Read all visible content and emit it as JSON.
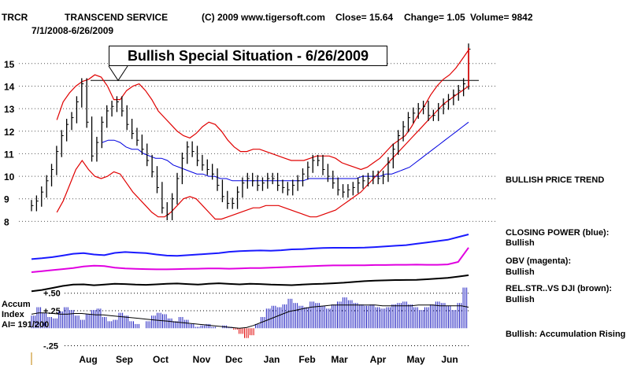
{
  "header": {
    "ticker": "TRCR",
    "company": "TRANSCEND SERVICE",
    "copyright": "(C) 2009 www.tigersoft.com",
    "close": "Close=  15.64",
    "change": "Change= 1.05",
    "volume": "Volume=  9842",
    "date_range": "7/1/2008-6/26/2009"
  },
  "callout": "Bullish Special Situation - 6/26/2009",
  "side_labels": {
    "price_trend": "BULLISH PRICE TREND",
    "closing_power_title": "CLOSING POWER (blue):",
    "closing_power_value": "Bullish",
    "obv_title": "OBV (magenta):",
    "obv_value": "Bullish",
    "relstr_title": "REL.STR..VS DJI (brown):",
    "relstr_value": "Bullish",
    "accum_status": "Bullish: Accumulation Rising"
  },
  "accum_labels": {
    "title": "Accum",
    "subtitle": "Index",
    "ai": "AI= 191/200"
  },
  "colors": {
    "price_bars": "#000000",
    "bollinger_bands": "#e00000",
    "moving_average": "#0000e0",
    "closing_power": "#1a1aff",
    "obv": "#e000e0",
    "relative_strength": "#000000",
    "accum_positive": "#2020c0",
    "accum_negative": "#e00000",
    "resistance_line": "#000000"
  },
  "chart_data": {
    "type": "line",
    "price_panel": {
      "y_ticks": [
        8,
        9,
        10,
        11,
        12,
        13,
        14,
        15
      ],
      "ylim": [
        7.7,
        15.9
      ],
      "grid": "dotted horizontal",
      "resistance_level": 14.25,
      "price_closes": [
        8.7,
        8.9,
        9.3,
        9.8,
        10.3,
        11.1,
        11.8,
        12.3,
        12.6,
        13.3,
        14.1,
        12.4,
        10.9,
        11.5,
        12.4,
        12.9,
        13.1,
        13.3,
        12.9,
        12.3,
        11.9,
        11.6,
        11.2,
        10.7,
        10.2,
        9.5,
        8.6,
        8.3,
        9.0,
        9.9,
        10.8,
        11.3,
        11.1,
        10.7,
        10.5,
        10.3,
        10.1,
        9.6,
        9.1,
        8.8,
        8.8,
        9.3,
        9.7,
        9.9,
        9.8,
        9.6,
        9.7,
        9.9,
        9.9,
        9.6,
        9.5,
        9.4,
        9.6,
        9.8,
        10.1,
        10.4,
        10.7,
        10.7,
        10.3,
        10.0,
        9.7,
        9.4,
        9.3,
        9.4,
        9.5,
        9.7,
        9.8,
        9.9,
        10.0,
        9.9,
        10.0,
        10.6,
        11.2,
        11.8,
        12.2,
        12.6,
        12.8,
        13.0,
        13.1,
        12.7,
        12.7,
        13.0,
        13.2,
        13.4,
        13.6,
        13.8,
        14.1,
        15.64
      ],
      "ma_50": [
        null,
        null,
        null,
        null,
        null,
        null,
        null,
        null,
        null,
        null,
        null,
        null,
        11.5,
        11.6,
        11.6,
        11.5,
        11.3,
        11.2,
        11.2,
        11.0,
        10.9,
        10.8,
        10.8,
        10.7,
        10.5,
        10.4,
        10.3,
        10.2,
        10.1,
        10.1,
        10.0,
        10.0,
        9.9,
        9.9,
        9.8,
        9.8,
        9.8,
        9.8,
        9.8,
        9.8,
        9.8,
        9.8,
        9.8,
        9.8,
        9.8,
        9.8,
        9.8,
        9.9,
        9.9,
        9.9,
        9.9,
        9.9,
        9.9,
        9.9,
        9.9,
        9.9,
        10.0,
        10.0,
        10.0,
        10.0,
        10.1,
        10.1,
        10.2,
        10.3,
        10.4,
        10.6,
        10.8,
        11.0,
        11.2,
        11.4,
        11.6,
        11.8,
        12.0,
        12.2,
        12.4
      ],
      "upper_band": [
        null,
        null,
        null,
        null,
        12.5,
        13.3,
        13.7,
        14.0,
        14.2,
        14.3,
        14.5,
        14.4,
        14.0,
        13.4,
        13.4,
        13.8,
        14.0,
        14.1,
        13.8,
        13.4,
        12.9,
        12.6,
        12.3,
        12.0,
        11.8,
        11.7,
        11.9,
        12.2,
        12.4,
        12.3,
        12.0,
        11.6,
        11.3,
        11.1,
        11.1,
        11.2,
        11.2,
        11.1,
        11.0,
        10.9,
        10.8,
        10.7,
        10.7,
        10.7,
        10.8,
        10.9,
        10.9,
        10.9,
        10.8,
        10.6,
        10.5,
        10.4,
        10.3,
        10.4,
        10.6,
        10.8,
        11.1,
        11.4,
        11.6,
        11.8,
        12.2,
        12.7,
        13.1,
        13.6,
        14.0,
        14.3,
        14.5,
        14.8,
        15.2,
        15.6
      ],
      "lower_band": [
        null,
        null,
        null,
        null,
        8.4,
        8.9,
        9.6,
        10.3,
        10.7,
        10.3,
        10.0,
        9.9,
        10.0,
        10.2,
        10.1,
        9.7,
        9.3,
        9.0,
        8.7,
        8.4,
        8.2,
        8.2,
        8.4,
        8.7,
        9.0,
        9.1,
        9.0,
        8.7,
        8.4,
        8.1,
        8.1,
        8.2,
        8.3,
        8.4,
        8.5,
        8.6,
        8.6,
        8.7,
        8.7,
        8.7,
        8.6,
        8.5,
        8.4,
        8.3,
        8.2,
        8.2,
        8.3,
        8.4,
        8.5,
        8.7,
        8.9,
        9.1,
        9.3,
        9.6,
        9.9,
        10.2,
        10.5,
        10.8,
        11.1,
        11.4,
        11.7,
        12.0,
        12.3,
        12.6,
        12.9,
        13.2,
        13.4,
        13.6,
        13.8,
        14.0
      ]
    },
    "indicators_panel": {
      "closing_power": [
        0.15,
        0.22,
        0.3,
        0.42,
        0.55,
        0.6,
        0.5,
        0.45,
        0.62,
        0.68,
        0.64,
        0.6,
        0.5,
        0.42,
        0.4,
        0.45,
        0.5,
        0.55,
        0.6,
        0.7,
        0.75,
        0.78,
        0.8,
        0.78,
        0.82,
        0.88,
        0.9,
        0.95,
        0.98,
        1.0,
        1.0,
        1.0,
        1.02,
        1.05,
        1.1,
        1.15,
        1.2,
        1.3,
        1.4,
        1.5,
        1.6,
        1.8,
        2.0
      ],
      "obv": [
        0.0,
        0.05,
        0.1,
        0.15,
        0.2,
        0.28,
        0.32,
        0.3,
        0.22,
        0.18,
        0.16,
        0.15,
        0.14,
        0.14,
        0.15,
        0.16,
        0.17,
        0.18,
        0.18,
        0.17,
        0.18,
        0.2,
        0.2,
        0.22,
        0.24,
        0.26,
        0.28,
        0.3,
        0.32,
        0.33,
        0.33,
        0.34,
        0.34,
        0.35,
        0.35,
        0.36,
        0.36,
        0.37,
        0.36,
        0.36,
        0.38,
        0.5,
        1.2
      ],
      "relative_strength": [
        0.1,
        0.2,
        0.35,
        0.5,
        0.6,
        0.62,
        0.55,
        0.6,
        0.66,
        0.64,
        0.6,
        0.58,
        0.62,
        0.66,
        0.68,
        0.64,
        0.6,
        0.66,
        0.7,
        0.65,
        0.62,
        0.66,
        0.64,
        0.6,
        0.58,
        0.56,
        0.6,
        0.64,
        0.66,
        0.7,
        0.74,
        0.8,
        0.86,
        0.9,
        0.92,
        0.94,
        0.95,
        0.96,
        1.0,
        1.05,
        1.1,
        1.2,
        1.3
      ]
    },
    "accum_panel": {
      "y_ticks": [
        0.5,
        0.25,
        -0.25
      ],
      "y_tick_labels": [
        "+.50",
        "+.25",
        "-.25"
      ],
      "ylim": [
        -0.3,
        0.62
      ],
      "values": [
        0.18,
        0.3,
        0.22,
        0.16,
        0.14,
        0.24,
        0.3,
        0.26,
        0.18,
        0.12,
        0.2,
        0.26,
        0.28,
        0.16,
        0.1,
        0.12,
        0.22,
        0.18,
        0.1,
        0.06,
        0.0,
        0.1,
        0.18,
        0.22,
        0.2,
        0.14,
        0.1,
        0.16,
        0.12,
        0.06,
        0.02,
        0.04,
        0.06,
        0.02,
        0.0,
        0.04,
        0.02,
        -0.02,
        -0.08,
        -0.14,
        -0.1,
        0.06,
        0.16,
        0.28,
        0.32,
        0.3,
        0.34,
        0.42,
        0.36,
        0.32,
        0.3,
        0.38,
        0.36,
        0.32,
        0.28,
        0.34,
        0.38,
        0.44,
        0.4,
        0.36,
        0.34,
        0.32,
        0.34,
        0.3,
        0.28,
        0.3,
        0.34,
        0.36,
        0.38,
        0.34,
        0.3,
        0.26,
        0.3,
        0.34,
        0.38,
        0.36,
        0.32,
        0.26,
        0.36,
        0.58
      ],
      "ma": [
        0.2,
        0.22,
        0.22,
        0.21,
        0.2,
        0.2,
        0.21,
        0.21,
        0.2,
        0.19,
        0.19,
        0.18,
        0.17,
        0.16,
        0.15,
        0.14,
        0.13,
        0.12,
        0.11,
        0.1,
        0.09,
        0.08,
        0.07,
        0.06,
        0.05,
        0.04,
        0.03,
        0.02,
        0.01,
        0.0,
        0.01,
        0.04,
        0.08,
        0.12,
        0.16,
        0.2,
        0.24,
        0.26,
        0.28,
        0.3,
        0.31,
        0.32,
        0.33,
        0.33,
        0.33,
        0.33,
        0.33,
        0.33,
        0.33,
        0.32,
        0.32,
        0.32,
        0.32,
        0.32,
        0.33,
        0.33,
        0.33,
        0.32,
        0.32,
        0.32,
        0.32,
        0.3
      ]
    },
    "x_tick_labels": [
      "Aug",
      "Sep",
      "Oct",
      "Nov",
      "Dec",
      "Jan",
      "Feb",
      "Mar",
      "Apr",
      "May",
      "Jun"
    ]
  }
}
